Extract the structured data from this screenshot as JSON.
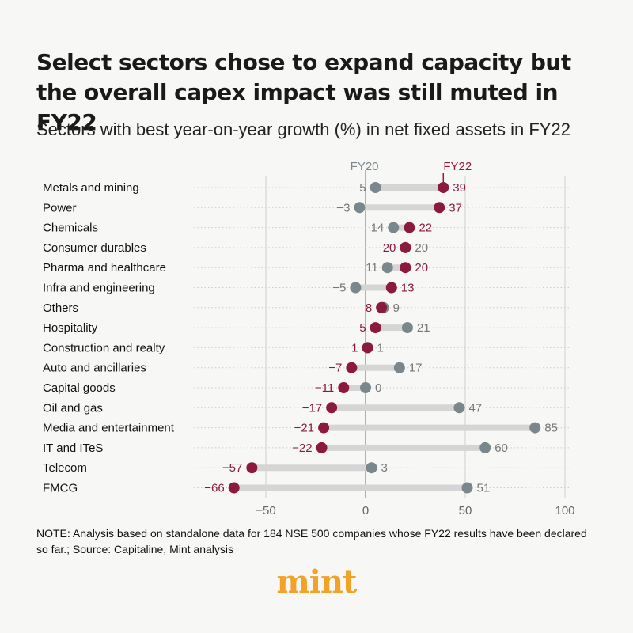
{
  "chart_data": {
    "type": "dumbbell",
    "title": "Select sectors chose to expand capacity but the overall capex impact was still muted in FY22",
    "subtitle": "Sectors with best year-on-year growth (%) in net fixed assets in FY22",
    "series_names": [
      "FY20",
      "FY22"
    ],
    "categories": [
      "Metals and mining",
      "Power",
      "Chemicals",
      "Consumer durables",
      "Pharma and healthcare",
      "Infra and engineering",
      "Others",
      "Hospitality",
      "Construction and realty",
      "Auto and ancillaries",
      "Capital goods",
      "Oil and gas",
      "Media and entertainment",
      "IT and ITeS",
      "Telecom",
      "FMCG"
    ],
    "series": [
      {
        "name": "FY20",
        "values": [
          5,
          -3,
          14,
          20,
          11,
          -5,
          9,
          21,
          1,
          17,
          0,
          47,
          85,
          60,
          3,
          51
        ]
      },
      {
        "name": "FY22",
        "values": [
          39,
          37,
          22,
          20,
          20,
          13,
          8,
          5,
          1,
          -7,
          -11,
          -17,
          -21,
          -22,
          -57,
          -66
        ]
      }
    ],
    "x_ticks": [
      -50,
      0,
      50,
      100
    ],
    "x_tick_labels": [
      "−50",
      "0",
      "50",
      "100"
    ],
    "xlim": [
      -72,
      102
    ],
    "colors": {
      "FY20": "#7a878c",
      "FY22": "#8c1a3e",
      "connector": "#d5d5d5"
    }
  },
  "note": "NOTE: Analysis based on standalone data for 184 NSE 500 companies whose FY22 results have been declared so far.; Source: Capitaline, Mint analysis",
  "logo": "mint"
}
